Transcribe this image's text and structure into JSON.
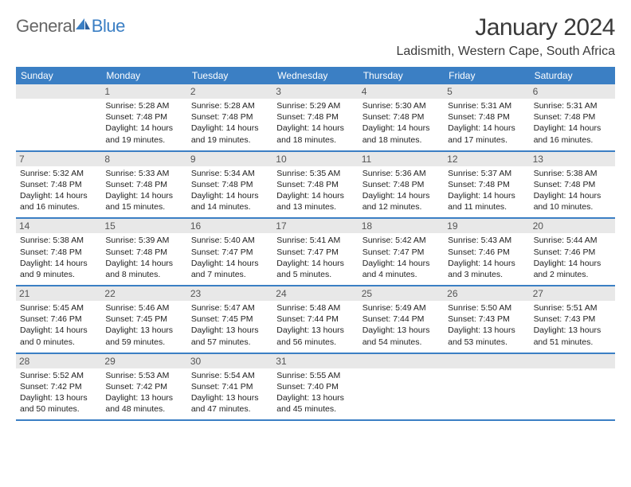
{
  "brand": {
    "text1": "General",
    "text2": "Blue"
  },
  "title": "January 2024",
  "location": "Ladismith, Western Cape, South Africa",
  "colors": {
    "accent": "#3b7fc4",
    "header_bg": "#e8e8e8",
    "text": "#222222",
    "brand_gray": "#666666"
  },
  "dayNames": [
    "Sunday",
    "Monday",
    "Tuesday",
    "Wednesday",
    "Thursday",
    "Friday",
    "Saturday"
  ],
  "weeks": [
    [
      null,
      {
        "d": "1",
        "sr": "Sunrise: 5:28 AM",
        "ss": "Sunset: 7:48 PM",
        "dl1": "Daylight: 14 hours",
        "dl2": "and 19 minutes."
      },
      {
        "d": "2",
        "sr": "Sunrise: 5:28 AM",
        "ss": "Sunset: 7:48 PM",
        "dl1": "Daylight: 14 hours",
        "dl2": "and 19 minutes."
      },
      {
        "d": "3",
        "sr": "Sunrise: 5:29 AM",
        "ss": "Sunset: 7:48 PM",
        "dl1": "Daylight: 14 hours",
        "dl2": "and 18 minutes."
      },
      {
        "d": "4",
        "sr": "Sunrise: 5:30 AM",
        "ss": "Sunset: 7:48 PM",
        "dl1": "Daylight: 14 hours",
        "dl2": "and 18 minutes."
      },
      {
        "d": "5",
        "sr": "Sunrise: 5:31 AM",
        "ss": "Sunset: 7:48 PM",
        "dl1": "Daylight: 14 hours",
        "dl2": "and 17 minutes."
      },
      {
        "d": "6",
        "sr": "Sunrise: 5:31 AM",
        "ss": "Sunset: 7:48 PM",
        "dl1": "Daylight: 14 hours",
        "dl2": "and 16 minutes."
      }
    ],
    [
      {
        "d": "7",
        "sr": "Sunrise: 5:32 AM",
        "ss": "Sunset: 7:48 PM",
        "dl1": "Daylight: 14 hours",
        "dl2": "and 16 minutes."
      },
      {
        "d": "8",
        "sr": "Sunrise: 5:33 AM",
        "ss": "Sunset: 7:48 PM",
        "dl1": "Daylight: 14 hours",
        "dl2": "and 15 minutes."
      },
      {
        "d": "9",
        "sr": "Sunrise: 5:34 AM",
        "ss": "Sunset: 7:48 PM",
        "dl1": "Daylight: 14 hours",
        "dl2": "and 14 minutes."
      },
      {
        "d": "10",
        "sr": "Sunrise: 5:35 AM",
        "ss": "Sunset: 7:48 PM",
        "dl1": "Daylight: 14 hours",
        "dl2": "and 13 minutes."
      },
      {
        "d": "11",
        "sr": "Sunrise: 5:36 AM",
        "ss": "Sunset: 7:48 PM",
        "dl1": "Daylight: 14 hours",
        "dl2": "and 12 minutes."
      },
      {
        "d": "12",
        "sr": "Sunrise: 5:37 AM",
        "ss": "Sunset: 7:48 PM",
        "dl1": "Daylight: 14 hours",
        "dl2": "and 11 minutes."
      },
      {
        "d": "13",
        "sr": "Sunrise: 5:38 AM",
        "ss": "Sunset: 7:48 PM",
        "dl1": "Daylight: 14 hours",
        "dl2": "and 10 minutes."
      }
    ],
    [
      {
        "d": "14",
        "sr": "Sunrise: 5:38 AM",
        "ss": "Sunset: 7:48 PM",
        "dl1": "Daylight: 14 hours",
        "dl2": "and 9 minutes."
      },
      {
        "d": "15",
        "sr": "Sunrise: 5:39 AM",
        "ss": "Sunset: 7:48 PM",
        "dl1": "Daylight: 14 hours",
        "dl2": "and 8 minutes."
      },
      {
        "d": "16",
        "sr": "Sunrise: 5:40 AM",
        "ss": "Sunset: 7:47 PM",
        "dl1": "Daylight: 14 hours",
        "dl2": "and 7 minutes."
      },
      {
        "d": "17",
        "sr": "Sunrise: 5:41 AM",
        "ss": "Sunset: 7:47 PM",
        "dl1": "Daylight: 14 hours",
        "dl2": "and 5 minutes."
      },
      {
        "d": "18",
        "sr": "Sunrise: 5:42 AM",
        "ss": "Sunset: 7:47 PM",
        "dl1": "Daylight: 14 hours",
        "dl2": "and 4 minutes."
      },
      {
        "d": "19",
        "sr": "Sunrise: 5:43 AM",
        "ss": "Sunset: 7:46 PM",
        "dl1": "Daylight: 14 hours",
        "dl2": "and 3 minutes."
      },
      {
        "d": "20",
        "sr": "Sunrise: 5:44 AM",
        "ss": "Sunset: 7:46 PM",
        "dl1": "Daylight: 14 hours",
        "dl2": "and 2 minutes."
      }
    ],
    [
      {
        "d": "21",
        "sr": "Sunrise: 5:45 AM",
        "ss": "Sunset: 7:46 PM",
        "dl1": "Daylight: 14 hours",
        "dl2": "and 0 minutes."
      },
      {
        "d": "22",
        "sr": "Sunrise: 5:46 AM",
        "ss": "Sunset: 7:45 PM",
        "dl1": "Daylight: 13 hours",
        "dl2": "and 59 minutes."
      },
      {
        "d": "23",
        "sr": "Sunrise: 5:47 AM",
        "ss": "Sunset: 7:45 PM",
        "dl1": "Daylight: 13 hours",
        "dl2": "and 57 minutes."
      },
      {
        "d": "24",
        "sr": "Sunrise: 5:48 AM",
        "ss": "Sunset: 7:44 PM",
        "dl1": "Daylight: 13 hours",
        "dl2": "and 56 minutes."
      },
      {
        "d": "25",
        "sr": "Sunrise: 5:49 AM",
        "ss": "Sunset: 7:44 PM",
        "dl1": "Daylight: 13 hours",
        "dl2": "and 54 minutes."
      },
      {
        "d": "26",
        "sr": "Sunrise: 5:50 AM",
        "ss": "Sunset: 7:43 PM",
        "dl1": "Daylight: 13 hours",
        "dl2": "and 53 minutes."
      },
      {
        "d": "27",
        "sr": "Sunrise: 5:51 AM",
        "ss": "Sunset: 7:43 PM",
        "dl1": "Daylight: 13 hours",
        "dl2": "and 51 minutes."
      }
    ],
    [
      {
        "d": "28",
        "sr": "Sunrise: 5:52 AM",
        "ss": "Sunset: 7:42 PM",
        "dl1": "Daylight: 13 hours",
        "dl2": "and 50 minutes."
      },
      {
        "d": "29",
        "sr": "Sunrise: 5:53 AM",
        "ss": "Sunset: 7:42 PM",
        "dl1": "Daylight: 13 hours",
        "dl2": "and 48 minutes."
      },
      {
        "d": "30",
        "sr": "Sunrise: 5:54 AM",
        "ss": "Sunset: 7:41 PM",
        "dl1": "Daylight: 13 hours",
        "dl2": "and 47 minutes."
      },
      {
        "d": "31",
        "sr": "Sunrise: 5:55 AM",
        "ss": "Sunset: 7:40 PM",
        "dl1": "Daylight: 13 hours",
        "dl2": "and 45 minutes."
      },
      null,
      null,
      null
    ]
  ]
}
